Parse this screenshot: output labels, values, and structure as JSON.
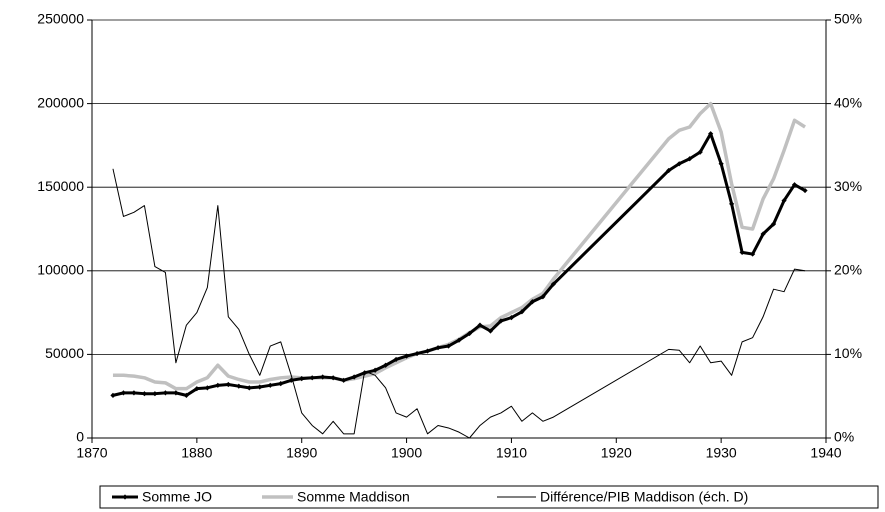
{
  "chart_data": {
    "type": "line",
    "x": [
      1872,
      1873,
      1874,
      1875,
      1876,
      1877,
      1878,
      1879,
      1880,
      1881,
      1882,
      1883,
      1884,
      1885,
      1886,
      1887,
      1888,
      1889,
      1890,
      1891,
      1892,
      1893,
      1894,
      1895,
      1896,
      1897,
      1898,
      1899,
      1900,
      1901,
      1902,
      1903,
      1904,
      1905,
      1906,
      1907,
      1908,
      1909,
      1910,
      1911,
      1912,
      1913,
      1914,
      1925,
      1926,
      1927,
      1928,
      1929,
      1930,
      1931,
      1932,
      1933,
      1934,
      1935,
      1936,
      1937,
      1938
    ],
    "series": [
      {
        "name": "Somme JO",
        "color": "#000000",
        "marker": "diamond",
        "values": [
          25500,
          27000,
          27000,
          26500,
          26500,
          27000,
          27000,
          25500,
          29500,
          30000,
          31500,
          32000,
          31000,
          30000,
          30500,
          31500,
          32500,
          34500,
          35500,
          36000,
          36500,
          36000,
          34500,
          36500,
          39000,
          40500,
          43500,
          47000,
          49000,
          50500,
          52000,
          54000,
          55000,
          58500,
          62500,
          67500,
          64000,
          70000,
          72000,
          75500,
          81500,
          84500,
          92000,
          160000,
          164000,
          167000,
          171000,
          182000,
          164000,
          140000,
          111000,
          110000,
          122000,
          128000,
          142000,
          151500,
          148000
        ]
      },
      {
        "name": "Somme Maddison",
        "color": "#c0c0c0",
        "values": [
          37500,
          37500,
          37000,
          36000,
          33500,
          33000,
          29500,
          29500,
          33500,
          36000,
          43500,
          37000,
          35000,
          33500,
          33500,
          35000,
          36000,
          36500,
          36000,
          36000,
          36000,
          36000,
          34500,
          35500,
          37000,
          38500,
          42000,
          45000,
          48000,
          50500,
          52000,
          54000,
          56000,
          59000,
          63000,
          66500,
          67000,
          72000,
          75000,
          78000,
          83000,
          86500,
          95000,
          179000,
          184000,
          186000,
          194000,
          200000,
          183000,
          152000,
          126000,
          125000,
          143000,
          155000,
          172000,
          190000,
          186000
        ]
      },
      {
        "name": "Différence/PIB Maddison (éch. D)",
        "color": "#000000",
        "axis": "y2",
        "values": [
          32.2,
          26.5,
          27,
          27.8,
          20.5,
          19.8,
          9,
          13.5,
          15,
          18,
          27.8,
          14.5,
          13,
          10,
          7.5,
          11,
          11.5,
          7.5,
          3,
          1.5,
          0.5,
          2,
          0.5,
          0.5,
          8,
          7.5,
          6,
          3,
          2.5,
          3.5,
          0.5,
          1.5,
          1.2,
          0.7,
          0,
          1.5,
          2.5,
          3,
          3.8,
          2,
          3,
          2,
          2.5,
          10.6,
          10.5,
          9,
          11,
          9,
          9.2,
          7.5,
          11.5,
          12,
          14.5,
          17.8,
          17.5,
          20.2,
          20
        ]
      }
    ],
    "xlim": [
      1870,
      1940
    ],
    "xticks": [
      1870,
      1880,
      1890,
      1900,
      1910,
      1920,
      1930,
      1940
    ],
    "ylim": [
      0,
      250000
    ],
    "yticks": [
      0,
      50000,
      100000,
      150000,
      200000,
      250000
    ],
    "y2lim": [
      0,
      50
    ],
    "y2ticks": [
      {
        "value": 0,
        "label": "0%"
      },
      {
        "value": 10,
        "label": "10%"
      },
      {
        "value": 20,
        "label": "20%"
      },
      {
        "value": 30,
        "label": "30%"
      },
      {
        "value": 40,
        "label": "40%"
      },
      {
        "value": 50,
        "label": "50%"
      }
    ],
    "grid": true,
    "legend": "bottom"
  }
}
